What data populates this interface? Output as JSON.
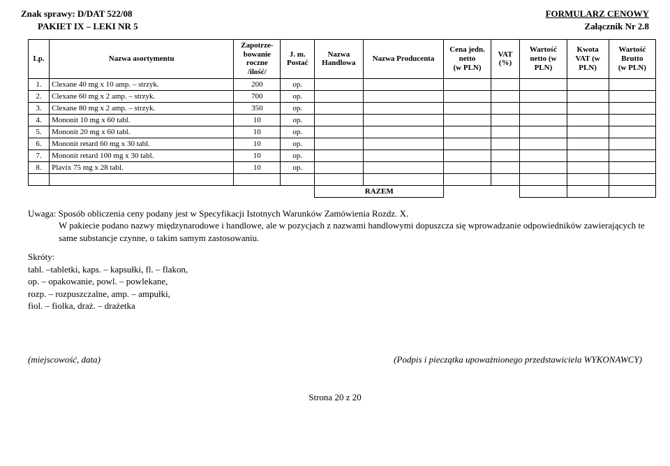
{
  "header": {
    "left": "Znak sprawy: D/DAT 522/08",
    "right": "FORMULARZ CENOWY",
    "subleft": "PAKIET IX – LEKI NR 5",
    "subright": "Załącznik Nr 2.8"
  },
  "table": {
    "columns": {
      "lp": "Lp.",
      "name": "Nazwa asortymentu",
      "zap": "Zapotrze-\nbowanie\nroczne\n/ilość/",
      "jm": "J. m.\nPostać",
      "hand": "Nazwa\nHandlowa",
      "prod": "Nazwa Producenta",
      "cena": "Cena jedn.\nnetto\n(w PLN)",
      "vat": "VAT\n(%)",
      "wn": "Wartość\nnetto (w\nPLN)",
      "kv": "Kwota\nVAT (w\nPLN)",
      "wb": "Wartość\nBrutto\n(w PLN)"
    },
    "rows": [
      {
        "lp": "1.",
        "name": "Clexane 40 mg x 10 amp. – strzyk.",
        "qty": "200",
        "jm": "op."
      },
      {
        "lp": "2.",
        "name": "Clexane 60 mg x 2 amp. – strzyk.",
        "qty": "700",
        "jm": "op."
      },
      {
        "lp": "3.",
        "name": "Clexane 80 mg x 2 amp. – strzyk.",
        "qty": "350",
        "jm": "op."
      },
      {
        "lp": "4.",
        "name": "Mononit 10 mg x 60 tabl.",
        "qty": "10",
        "jm": "op."
      },
      {
        "lp": "5.",
        "name": "Mononit 20 mg x 60 tabl.",
        "qty": "10",
        "jm": "op."
      },
      {
        "lp": "6.",
        "name": "Mononit retard 60 mg x 30 tabl.",
        "qty": "10",
        "jm": "op."
      },
      {
        "lp": "7.",
        "name": "Mononit retard 100 mg x 30 tabl.",
        "qty": "10",
        "jm": "op."
      },
      {
        "lp": "8.",
        "name": "Plavix 75 mg x 28 tabl.",
        "qty": "10",
        "jm": "op."
      }
    ],
    "razem": "RAZEM"
  },
  "note": {
    "line1": "Uwaga: Sposób obliczenia ceny podany jest w Specyfikacji Istotnych Warunków Zamówienia Rozdz. X.",
    "line2": "W pakiecie podano nazwy międzynarodowe i handlowe, ale w pozycjach z nazwami handlowymi dopuszcza się wprowadzanie odpowiedników zawierających te same substancje czynne, o takim samym zastosowaniu."
  },
  "skroty": {
    "title": "Skróty:",
    "l1": "tabl. –tabletki, kaps. – kapsułki, fl. – flakon,",
    "l2": "op. – opakowanie, powl. – powlekane,",
    "l3": "rozp. – rozpuszczalne, amp. – ampułki,",
    "l4": "fiol. – fiolka, draż. – drażetka"
  },
  "sig": {
    "left": "(miejscowość, data)",
    "right": "(Podpis i pieczątka upoważnionego przedstawiciela WYKONAWCY)"
  },
  "footer": "Strona 20 z 20"
}
